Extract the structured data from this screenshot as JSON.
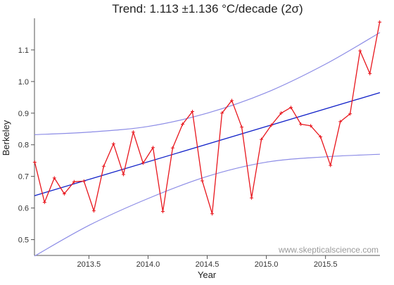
{
  "chart_data": {
    "type": "line",
    "title": "Trend: 1.113 ±1.136 °C/decade (2σ)",
    "xlabel": "Year",
    "ylabel": "Berkeley",
    "xlim": [
      2013.04,
      2015.96
    ],
    "ylim": [
      0.45,
      1.2
    ],
    "x_ticks": [
      "2013.5",
      "2014.0",
      "2014.5",
      "2015.0",
      "2015.5"
    ],
    "y_ticks": [
      "0.5",
      "0.6",
      "0.7",
      "0.8",
      "0.9",
      "1.0",
      "1.1"
    ],
    "grid": false,
    "watermark": "www.skepticalscience.com",
    "colors": {
      "data": "#e8151c",
      "trend": "#1020c8",
      "confidence": "#8c8ce6",
      "axis": "#555555"
    },
    "series": [
      {
        "role": "data",
        "x": [
          2013.042,
          2013.125,
          2013.208,
          2013.292,
          2013.375,
          2013.458,
          2013.542,
          2013.625,
          2013.708,
          2013.792,
          2013.875,
          2013.958,
          2014.042,
          2014.125,
          2014.208,
          2014.292,
          2014.375,
          2014.458,
          2014.542,
          2014.625,
          2014.708,
          2014.792,
          2014.875,
          2014.958,
          2015.042,
          2015.125,
          2015.208,
          2015.292,
          2015.375,
          2015.458,
          2015.542,
          2015.625,
          2015.708,
          2015.792,
          2015.875,
          2015.958
        ],
        "y": [
          0.745,
          0.618,
          0.695,
          0.645,
          0.683,
          0.685,
          0.591,
          0.732,
          0.803,
          0.706,
          0.84,
          0.742,
          0.791,
          0.589,
          0.79,
          0.865,
          0.905,
          0.686,
          0.582,
          0.9,
          0.94,
          0.856,
          0.632,
          0.817,
          0.862,
          0.9,
          0.918,
          0.865,
          0.86,
          0.825,
          0.735,
          0.873,
          0.898,
          1.097,
          1.025,
          1.188
        ]
      },
      {
        "role": "trend",
        "x": [
          2013.04,
          2015.96
        ],
        "y": [
          0.639,
          0.965
        ]
      },
      {
        "role": "upper",
        "x": [
          2013.04,
          2013.5,
          2014.0,
          2014.5,
          2015.0,
          2015.5,
          2015.96
        ],
        "y": [
          0.832,
          0.84,
          0.858,
          0.9,
          0.965,
          1.055,
          1.155
        ]
      },
      {
        "role": "lower",
        "x": [
          2013.04,
          2013.5,
          2014.0,
          2014.5,
          2015.0,
          2015.5,
          2015.96
        ],
        "y": [
          0.448,
          0.545,
          0.63,
          0.7,
          0.745,
          0.762,
          0.77
        ]
      }
    ]
  }
}
